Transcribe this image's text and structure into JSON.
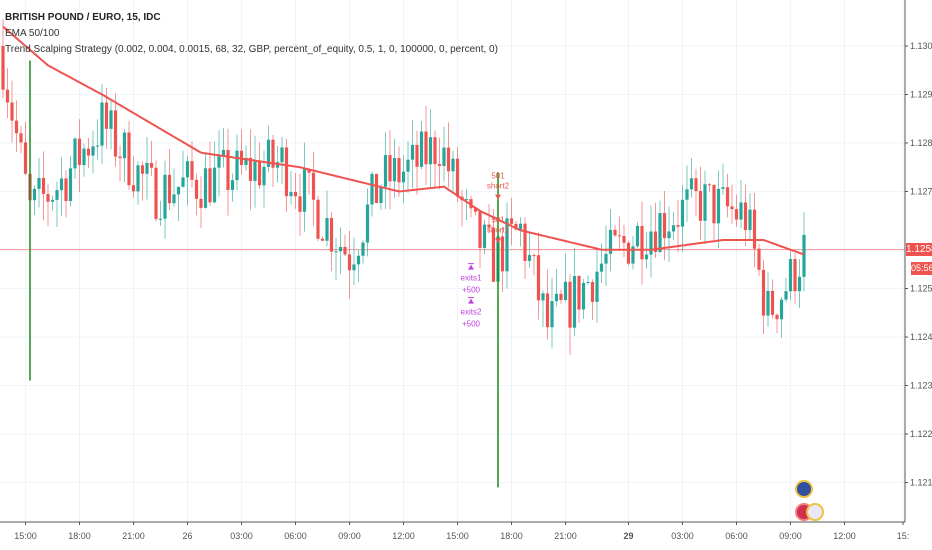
{
  "header": {
    "symbol": "BRITISH POUND / EURO, 15, IDC",
    "indicator1": "EMA 50/100",
    "indicator2": "Trend Scalping Strategy (0.002, 0.004, 0.0015, 68, 32, GBP, percent_of_equity, 0.5, 1, 0, 100000, 0, percent, 0)"
  },
  "price_label": {
    "value": "1.1258",
    "countdown": "05:56"
  },
  "chart_data": {
    "type": "candlestick",
    "title": "BRITISH POUND / EURO, 15, IDC",
    "interval_minutes": 15,
    "ylim": [
      1.1198,
      1.1318
    ],
    "y_ticks": [
      "1.1300",
      "1.1290",
      "1.1280",
      "1.1270",
      "1.1250",
      "1.1240",
      "1.1230",
      "1.1220",
      "1.1210"
    ],
    "x_ticks": [
      {
        "label": "15:00",
        "bar": 5
      },
      {
        "label": "18:00",
        "bar": 17
      },
      {
        "label": "21:00",
        "bar": 29
      },
      {
        "label": "26",
        "bar": 41,
        "bold": false
      },
      {
        "label": "03:00",
        "bar": 53
      },
      {
        "label": "06:00",
        "bar": 65
      },
      {
        "label": "09:00",
        "bar": 77
      },
      {
        "label": "12:00",
        "bar": 89
      },
      {
        "label": "15:00",
        "bar": 101
      },
      {
        "label": "18:00",
        "bar": 113
      },
      {
        "label": "21:00",
        "bar": 125
      },
      {
        "label": "29",
        "bar": 139,
        "bold": true
      },
      {
        "label": "03:00",
        "bar": 151
      },
      {
        "label": "06:00",
        "bar": 163
      },
      {
        "label": "09:00",
        "bar": 175
      },
      {
        "label": "12:00",
        "bar": 187
      },
      {
        "label": "15:",
        "bar": 200
      }
    ],
    "close_path": [
      [
        0,
        1.1297
      ],
      [
        6,
        1.1266
      ],
      [
        13,
        1.1272
      ],
      [
        22,
        1.1284
      ],
      [
        33,
        1.127
      ],
      [
        44,
        1.1272
      ],
      [
        62,
        1.1276
      ],
      [
        73,
        1.1262
      ],
      [
        77,
        1.1257
      ],
      [
        84,
        1.1272
      ],
      [
        91,
        1.1275
      ],
      [
        97,
        1.128
      ],
      [
        104,
        1.1262
      ],
      [
        109,
        1.1256
      ],
      [
        115,
        1.1262
      ],
      [
        121,
        1.1242
      ],
      [
        126,
        1.1247
      ],
      [
        133,
        1.1255
      ],
      [
        142,
        1.1262
      ],
      [
        155,
        1.1268
      ],
      [
        165,
        1.1265
      ],
      [
        170,
        1.1245
      ],
      [
        175,
        1.1252
      ],
      [
        178,
        1.1258
      ]
    ],
    "ema_path": [
      [
        0,
        1.1304
      ],
      [
        10,
        1.1296
      ],
      [
        22,
        1.129
      ],
      [
        44,
        1.1278
      ],
      [
        66,
        1.1275
      ],
      [
        88,
        1.127
      ],
      [
        98,
        1.1271
      ],
      [
        106,
        1.1266
      ],
      [
        115,
        1.1262
      ],
      [
        133,
        1.1258
      ],
      [
        144,
        1.1258
      ],
      [
        160,
        1.126
      ],
      [
        169,
        1.126
      ],
      [
        178,
        1.1257
      ]
    ],
    "last_price": 1.1258,
    "signal_lines": [
      {
        "bar": 6,
        "high": 1.1297,
        "low": 1.1231
      },
      {
        "bar": 110,
        "high": 1.1274,
        "low": 1.1209
      }
    ],
    "annotations": [
      {
        "bar": 110,
        "price": 1.1271,
        "text1": "501",
        "text2": "short2",
        "kind": "entry"
      },
      {
        "bar": 110,
        "price": 1.1262,
        "text1": "501",
        "text2": "short1",
        "kind": "entry"
      },
      {
        "bar": 104,
        "price": 1.1251,
        "text1": "exits1",
        "text2": "+500",
        "kind": "exit"
      },
      {
        "bar": 104,
        "price": 1.1244,
        "text1": "exits2",
        "text2": "+500",
        "kind": "exit"
      }
    ],
    "colors": {
      "up": "#26a69a",
      "down": "#ef5350",
      "ema": "#ef5350",
      "signal": "#1b8a1b",
      "exit": "#c040e0"
    }
  }
}
